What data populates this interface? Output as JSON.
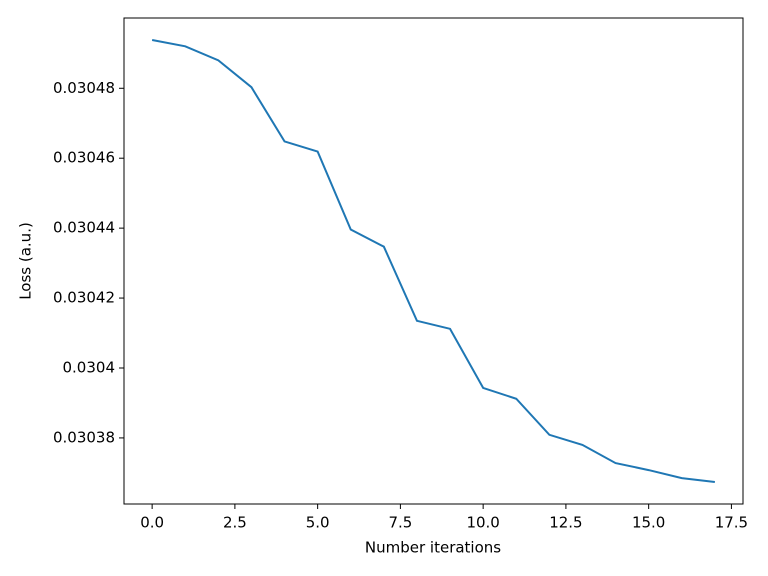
{
  "chart_data": {
    "type": "line",
    "xlabel": "Number iterations",
    "ylabel": "Loss (a.u.)",
    "x": [
      0,
      1,
      2,
      3,
      4,
      5,
      6,
      7,
      8,
      9,
      10,
      11,
      12,
      13,
      14,
      15,
      16,
      17
    ],
    "series": [
      {
        "color": "#1f77b4",
        "values": [
          0.0304938,
          0.030492,
          0.030488,
          0.0304803,
          0.0304648,
          0.0304619,
          0.0304396,
          0.0304347,
          0.0304135,
          0.0304112,
          0.0303943,
          0.0303912,
          0.0303809,
          0.030378,
          0.0303728,
          0.0303708,
          0.0303685,
          0.0303674
        ]
      }
    ],
    "xlim": [
      -0.85,
      17.85
    ],
    "xticks": [
      {
        "value": 0,
        "label": "0.0"
      },
      {
        "value": 2.5,
        "label": "2.5"
      },
      {
        "value": 5,
        "label": "5.0"
      },
      {
        "value": 7.5,
        "label": "7.5"
      },
      {
        "value": 10,
        "label": "10.0"
      },
      {
        "value": 12.5,
        "label": "12.5"
      },
      {
        "value": 15,
        "label": "15.0"
      },
      {
        "value": 17.5,
        "label": "17.5"
      }
    ],
    "ylim": [
      0.0303611,
      0.0305001
    ],
    "yticks": [
      0.03038,
      0.0304,
      0.03042,
      0.03044,
      0.03046,
      0.03048
    ]
  }
}
